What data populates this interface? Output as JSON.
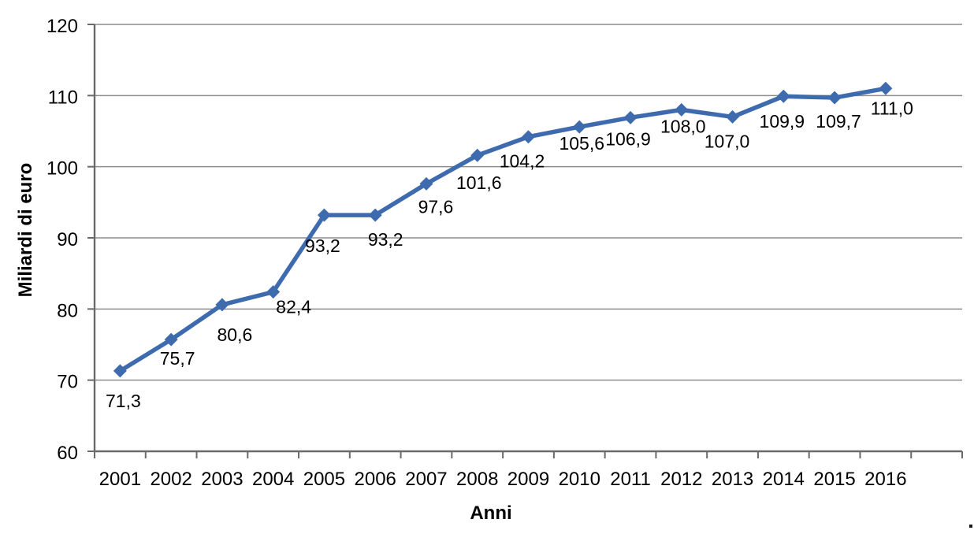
{
  "chart_data": {
    "type": "line",
    "title": "",
    "xlabel": "Anni",
    "ylabel": "Miliardi di euro",
    "categories": [
      "2001",
      "2002",
      "2003",
      "2004",
      "2005",
      "2006",
      "2007",
      "2008",
      "2009",
      "2010",
      "2011",
      "2012",
      "2013",
      "2014",
      "2015",
      "2016"
    ],
    "values": [
      71.3,
      75.7,
      80.6,
      82.4,
      93.2,
      93.2,
      97.6,
      101.6,
      104.2,
      105.6,
      106.9,
      108.0,
      107.0,
      109.9,
      109.7,
      111.0
    ],
    "value_labels": [
      "71,3",
      "75,7",
      "80,6",
      "82,4",
      "93,2",
      "93,2",
      "97,6",
      "101,6",
      "104,2",
      "105,6",
      "106,9",
      "108,0",
      "107,0",
      "109,9",
      "109,7",
      "111,0"
    ],
    "ylim": [
      60,
      120
    ],
    "ytick_step": 10,
    "yticks": [
      "60",
      "70",
      "80",
      "90",
      "100",
      "110",
      "120"
    ],
    "grid": "horizontal",
    "legend": "none",
    "marker": "diamond",
    "series_color": "#3E6BAE",
    "gridline_color": "#8C8C8C",
    "axis_color": "#6A6A6A",
    "text_color": "#000000",
    "background_color": "#FFFFFF"
  }
}
